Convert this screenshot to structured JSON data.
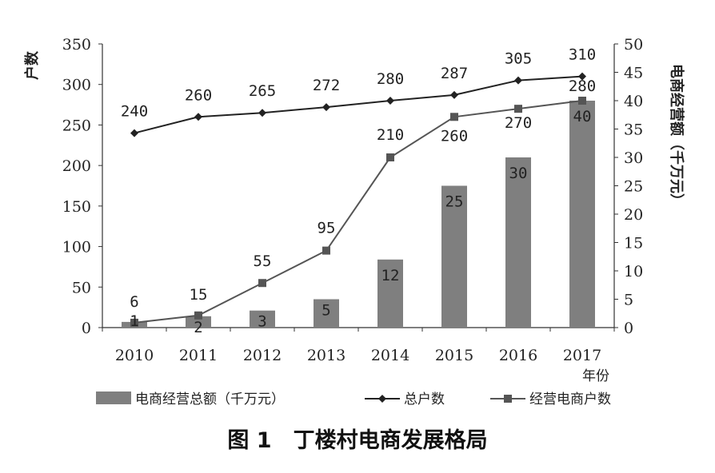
{
  "chart_data": {
    "type": "bar+line",
    "categories": [
      "2010",
      "2011",
      "2012",
      "2013",
      "2014",
      "2015",
      "2016",
      "2017"
    ],
    "y_left": {
      "label": "户数",
      "ylim": [
        0,
        350
      ],
      "ticks": [
        "0",
        "50",
        "100",
        "150",
        "200",
        "250",
        "300",
        "350"
      ]
    },
    "y_right": {
      "label": "电商经营额（千万元）",
      "ylim": [
        0,
        50
      ],
      "ticks": [
        "0",
        "5",
        "10",
        "15",
        "20",
        "25",
        "30",
        "35",
        "40",
        "45",
        "50"
      ]
    },
    "x_unit": "年份",
    "series": [
      {
        "name": "电商经营总额（千万元）",
        "type": "bar",
        "axis": "right",
        "color": "#7f7f7f",
        "values": [
          1,
          2,
          3,
          5,
          12,
          25,
          30,
          40
        ],
        "labels": [
          "1",
          "2",
          "3",
          "5",
          "12",
          "25",
          "30",
          "40"
        ]
      },
      {
        "name": "总户数",
        "type": "line",
        "axis": "left",
        "marker": "diamond",
        "color": "#222222",
        "values": [
          240,
          260,
          265,
          272,
          280,
          287,
          305,
          310
        ],
        "labels": [
          "240",
          "260",
          "265",
          "272",
          "280",
          "287",
          "305",
          "310"
        ]
      },
      {
        "name": "经营电商户数",
        "type": "line",
        "axis": "left",
        "marker": "square",
        "color": "#555555",
        "values": [
          6,
          15,
          55,
          95,
          210,
          260,
          270,
          280
        ],
        "labels": [
          "6",
          "15",
          "55",
          "95",
          "210",
          "260",
          "270",
          "280"
        ]
      }
    ],
    "legend": [
      "电商经营总额（千万元）",
      "总户数",
      "经营电商户数"
    ],
    "title": "图 1　丁楼村电商发展格局",
    "grid": false,
    "legend_position": "bottom"
  }
}
